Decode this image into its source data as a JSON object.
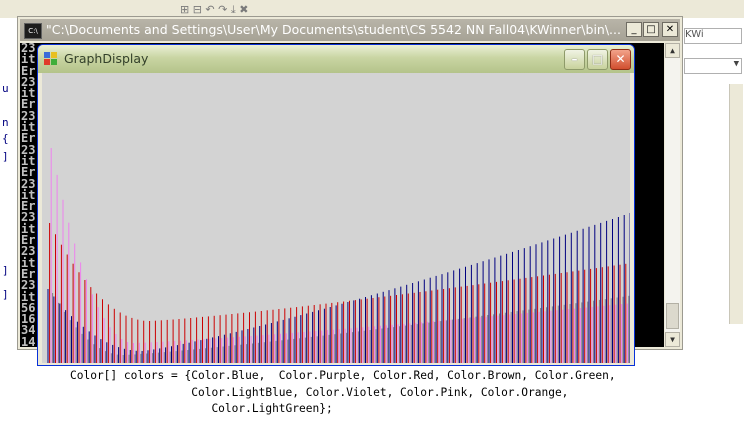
{
  "ide": {
    "toolbar_text": "⊞  ⊟  ↶  ↷  ⤓  ✖",
    "right_field_text": "KWi",
    "margin_glyphs": [
      "u",
      "n",
      "{",
      "]",
      "]",
      "]"
    ],
    "code_lines": [
      "Color[] colors = {Color.Blue,  Color.Purple, Color.Red, Color.Brown, Color.Green,",
      "                  Color.LightBlue, Color.Violet, Color.Pink, Color.Orange,",
      "                     Color.LightGreen};"
    ]
  },
  "console": {
    "title": "\"C:\\Documents and Settings\\User\\My Documents\\student\\CS 5542 NN Fall04\\KWinner\\bin\\...",
    "icon_text": "C:\\",
    "minimize_label": "_",
    "maximize_label": "□",
    "close_label": "✕",
    "lines": [
      "23",
      "it",
      "Er",
      "23",
      "it",
      "Er",
      "23",
      "it",
      "Er",
      "23",
      "it",
      "Er",
      "23",
      "it",
      "Er",
      "23",
      "it",
      "Er",
      "23",
      "it",
      "Er",
      "23",
      "it",
      "56",
      "16",
      "34",
      "14"
    ]
  },
  "graph_window": {
    "title": "GraphDisplay",
    "minimize_label": "–",
    "maximize_label": "□",
    "close_label": "✕"
  },
  "chart_data": {
    "type": "bar",
    "n": 100,
    "ylim": [
      0,
      290
    ],
    "series": [
      {
        "color": "#000080",
        "start": 74,
        "min": 12,
        "min_at": 16,
        "end": 150
      },
      {
        "color": "#cc0000",
        "start": 140,
        "min": 42,
        "min_at": 17,
        "end": 100
      },
      {
        "color": "#ee82ee",
        "start": 215,
        "min": 20,
        "min_at": 14,
        "end": 60
      },
      {
        "color": "#808080",
        "start": 70,
        "min": 8,
        "min_at": 12,
        "end": 68
      }
    ],
    "colors": {
      "background": "#d3d3d3"
    }
  }
}
